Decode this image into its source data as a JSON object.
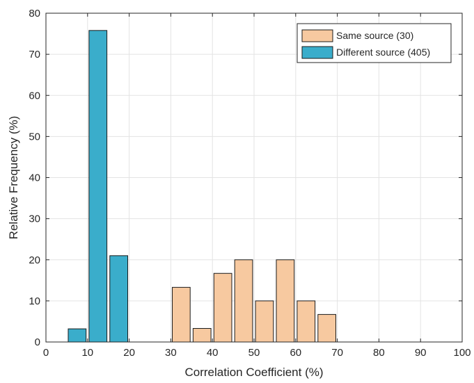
{
  "chart_data": {
    "type": "bar",
    "title": "",
    "xlabel": "Correlation Coefficient (%)",
    "ylabel": "Relative Frequency (%)",
    "xlim": [
      0,
      100
    ],
    "ylim": [
      0,
      80
    ],
    "xticks": [
      0,
      10,
      20,
      30,
      40,
      50,
      60,
      70,
      80,
      90,
      100
    ],
    "yticks": [
      0,
      10,
      20,
      30,
      40,
      50,
      60,
      70,
      80
    ],
    "grid": true,
    "legend_position": "top-right",
    "series": [
      {
        "name": "Same source (30)",
        "color": "#F7C9A0",
        "bins": [
          {
            "x": 32.5,
            "value": 13.3
          },
          {
            "x": 37.5,
            "value": 3.3
          },
          {
            "x": 42.5,
            "value": 16.7
          },
          {
            "x": 47.5,
            "value": 20.0
          },
          {
            "x": 52.5,
            "value": 10.0
          },
          {
            "x": 57.5,
            "value": 20.0
          },
          {
            "x": 62.5,
            "value": 10.0
          },
          {
            "x": 67.5,
            "value": 6.7
          }
        ]
      },
      {
        "name": "Different source (405)",
        "color": "#3AADCB",
        "bins": [
          {
            "x": 7.5,
            "value": 3.2
          },
          {
            "x": 12.5,
            "value": 75.8
          },
          {
            "x": 17.5,
            "value": 21.0
          }
        ]
      }
    ]
  }
}
